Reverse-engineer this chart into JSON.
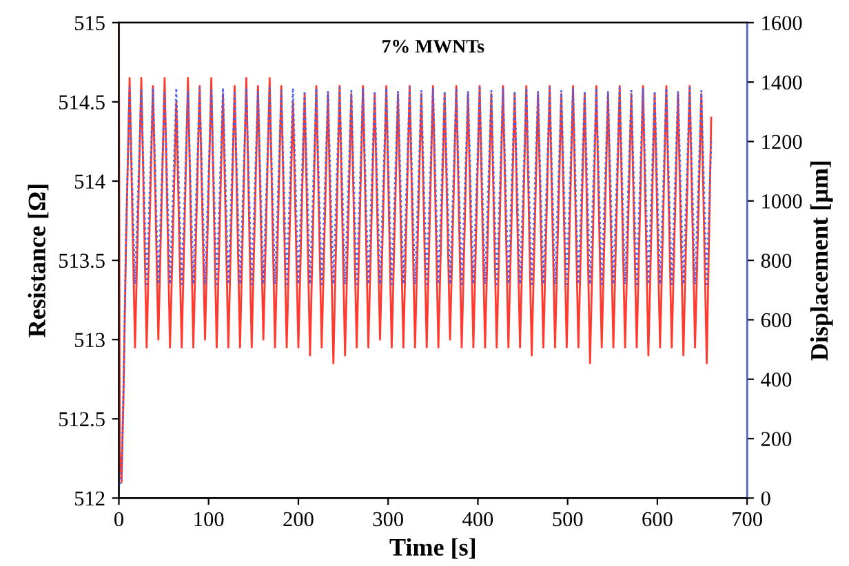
{
  "chart_data": {
    "type": "line",
    "title": "7% MWNTs",
    "xlabel": "Time [s]",
    "ylabel": "Resistance [Ω]",
    "y2label": "Displacement [μm]",
    "x": [
      0,
      1,
      3,
      5,
      8,
      12,
      18,
      25,
      31,
      38,
      44,
      51,
      57,
      64,
      70,
      77,
      83,
      90,
      96,
      103,
      109,
      116,
      122,
      129,
      135,
      142,
      148,
      155,
      161,
      168,
      174,
      181,
      187,
      194,
      200,
      207,
      213,
      220,
      226,
      233,
      239,
      246,
      252,
      259,
      265,
      272,
      278,
      285,
      291,
      298,
      304,
      311,
      317,
      324,
      330,
      337,
      343,
      350,
      356,
      363,
      369,
      376,
      382,
      389,
      395,
      402,
      408,
      415,
      421,
      428,
      434,
      441,
      447,
      454,
      460,
      467,
      473,
      480,
      486,
      493,
      499,
      506,
      512,
      519,
      525,
      532,
      538,
      545,
      551,
      558,
      564,
      571,
      577,
      584,
      590,
      597,
      603,
      610,
      616,
      623,
      629,
      636,
      642,
      649,
      655,
      660
    ],
    "series": [
      {
        "color": "#ff3b2f",
        "line_style": "solid",
        "values": [
          515,
          512.3,
          512.1,
          512.6,
          513.6,
          514.65,
          512.95,
          514.65,
          512.95,
          514.6,
          513,
          514.65,
          512.95,
          514.5,
          512.95,
          514.65,
          512.95,
          514.6,
          513,
          514.65,
          512.95,
          514.55,
          512.95,
          514.6,
          512.95,
          514.65,
          512.95,
          514.6,
          513,
          514.65,
          512.95,
          514.6,
          512.95,
          514.5,
          512.95,
          514.55,
          512.9,
          514.6,
          512.95,
          514.55,
          512.85,
          514.6,
          512.9,
          514.55,
          512.95,
          514.6,
          512.95,
          514.55,
          513,
          514.6,
          512.95,
          514.55,
          512.95,
          514.6,
          512.95,
          514.55,
          512.95,
          514.6,
          512.95,
          514.55,
          513,
          514.6,
          512.95,
          514.55,
          512.95,
          514.6,
          512.95,
          514.55,
          512.95,
          514.6,
          512.95,
          514.55,
          512.95,
          514.6,
          512.9,
          514.55,
          512.95,
          514.6,
          512.95,
          514.55,
          512.95,
          514.6,
          512.95,
          514.55,
          512.85,
          514.6,
          512.95,
          514.55,
          512.95,
          514.6,
          512.95,
          514.55,
          512.95,
          514.6,
          512.9,
          514.55,
          512.95,
          514.6,
          512.95,
          514.55,
          512.9,
          514.6,
          512.95,
          514.55,
          512.85,
          514.4
        ]
      },
      {
        "color": "#4a5ee8",
        "axis": "y2",
        "line_style": "dotted",
        "values": [
          30,
          40,
          80,
          350,
          900,
          1380,
          720,
          1370,
          720,
          1380,
          720,
          1370,
          720,
          1380,
          720,
          1370,
          720,
          1380,
          720,
          1370,
          720,
          1380,
          720,
          1370,
          720,
          1380,
          720,
          1370,
          720,
          1380,
          720,
          1370,
          720,
          1380,
          720,
          1370,
          720,
          1380,
          720,
          1370,
          720,
          1380,
          720,
          1370,
          720,
          1380,
          720,
          1370,
          720,
          1380,
          720,
          1370,
          720,
          1380,
          720,
          1370,
          720,
          1380,
          720,
          1370,
          720,
          1380,
          720,
          1370,
          720,
          1380,
          720,
          1370,
          720,
          1380,
          720,
          1370,
          720,
          1380,
          720,
          1370,
          720,
          1380,
          720,
          1370,
          720,
          1380,
          720,
          1370,
          720,
          1380,
          720,
          1370,
          720,
          1380,
          720,
          1370,
          720,
          1380,
          720,
          1370,
          720,
          1380,
          720,
          1370,
          720,
          1380,
          720,
          1370,
          720,
          1200
        ]
      }
    ],
    "xlim": [
      0,
      700
    ],
    "xticks": [
      0,
      100,
      200,
      300,
      400,
      500,
      600,
      700
    ],
    "ylim": [
      512,
      515
    ],
    "yticks": [
      512,
      512.5,
      513,
      513.5,
      514,
      514.5,
      515
    ],
    "y2lim": [
      0,
      1600
    ],
    "y2ticks": [
      0,
      200,
      400,
      600,
      800,
      1000,
      1200,
      1400,
      1600
    ],
    "grid": false,
    "legend": false
  }
}
